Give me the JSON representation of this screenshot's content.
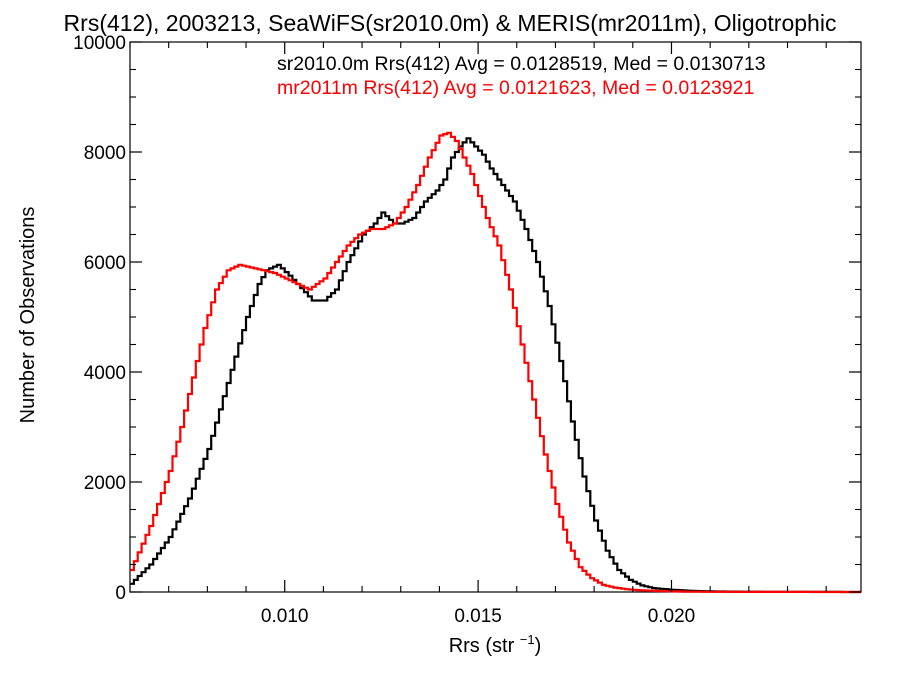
{
  "chart_data": {
    "type": "line",
    "title": "Rrs(412), 2003213, SeaWiFS(sr2010.0m) & MERIS(mr2011m), Oligotrophic",
    "xlabel": "Rrs (str",
    "xlabel_superscript": "−1",
    "xlabel_suffix": ")",
    "ylabel": "Number of Observations",
    "xlim": [
      0.006,
      0.0249
    ],
    "ylim": [
      0,
      10000
    ],
    "x_ticks": [
      0.01,
      0.015,
      0.02
    ],
    "x_tick_labels": [
      "0.010",
      "0.015",
      "0.020"
    ],
    "y_ticks": [
      0,
      2000,
      4000,
      6000,
      8000,
      10000
    ],
    "y_tick_labels": [
      "0",
      "2000",
      "4000",
      "6000",
      "8000",
      "10000"
    ],
    "grid": false,
    "legend_position": "top-right",
    "legend": [
      {
        "text": "sr2010.0m Rrs(412) Avg = 0.0128519, Med = 0.0130713",
        "color": "#000000"
      },
      {
        "text": "mr2011m Rrs(412) Avg = 0.0121623, Med = 0.0123921",
        "color": "#ff0000"
      }
    ],
    "series": [
      {
        "name": "sr2010.0m",
        "color": "#000000",
        "x": [
          0.006,
          0.0065,
          0.007,
          0.0075,
          0.008,
          0.0085,
          0.009,
          0.0093,
          0.0095,
          0.0098,
          0.0101,
          0.0105,
          0.0107,
          0.011,
          0.0113,
          0.0116,
          0.012,
          0.0123,
          0.0125,
          0.0128,
          0.013,
          0.0133,
          0.0136,
          0.0139,
          0.0141,
          0.0143,
          0.0145,
          0.0147,
          0.0149,
          0.0151,
          0.0153,
          0.0156,
          0.0159,
          0.0162,
          0.0165,
          0.0168,
          0.0171,
          0.0174,
          0.0177,
          0.018,
          0.0183,
          0.0186,
          0.0189,
          0.0192,
          0.0195,
          0.02,
          0.0205,
          0.021,
          0.022,
          0.0249
        ],
        "y": [
          150,
          500,
          1000,
          1700,
          2600,
          3800,
          5000,
          5600,
          5850,
          5950,
          5750,
          5450,
          5300,
          5300,
          5500,
          6000,
          6500,
          6700,
          6900,
          6700,
          6700,
          6800,
          7100,
          7300,
          7500,
          7900,
          8100,
          8250,
          8100,
          7950,
          7700,
          7400,
          7100,
          6600,
          6000,
          5200,
          4200,
          3100,
          2100,
          1300,
          750,
          400,
          220,
          120,
          70,
          40,
          20,
          10,
          5,
          0
        ]
      },
      {
        "name": "mr2011m",
        "color": "#ff0000",
        "x": [
          0.006,
          0.0065,
          0.007,
          0.0073,
          0.0076,
          0.0079,
          0.0082,
          0.0085,
          0.0088,
          0.0091,
          0.0094,
          0.0097,
          0.01,
          0.0103,
          0.0106,
          0.011,
          0.0113,
          0.0116,
          0.0119,
          0.0122,
          0.0125,
          0.0128,
          0.0131,
          0.0134,
          0.0137,
          0.014,
          0.0142,
          0.0144,
          0.0146,
          0.0148,
          0.015,
          0.0152,
          0.0155,
          0.0158,
          0.0161,
          0.0164,
          0.0167,
          0.017,
          0.0173,
          0.0176,
          0.0179,
          0.0182,
          0.0185,
          0.0188,
          0.0192,
          0.0197,
          0.0205,
          0.022,
          0.0249
        ],
        "y": [
          400,
          1200,
          2200,
          3000,
          3900,
          4800,
          5500,
          5850,
          5950,
          5900,
          5850,
          5800,
          5700,
          5600,
          5500,
          5700,
          6000,
          6300,
          6500,
          6600,
          6600,
          6700,
          7000,
          7400,
          7900,
          8300,
          8350,
          8200,
          7900,
          7600,
          7200,
          6800,
          6300,
          5500,
          4500,
          3500,
          2500,
          1600,
          900,
          450,
          250,
          130,
          80,
          50,
          30,
          15,
          5,
          2,
          0
        ]
      }
    ]
  }
}
